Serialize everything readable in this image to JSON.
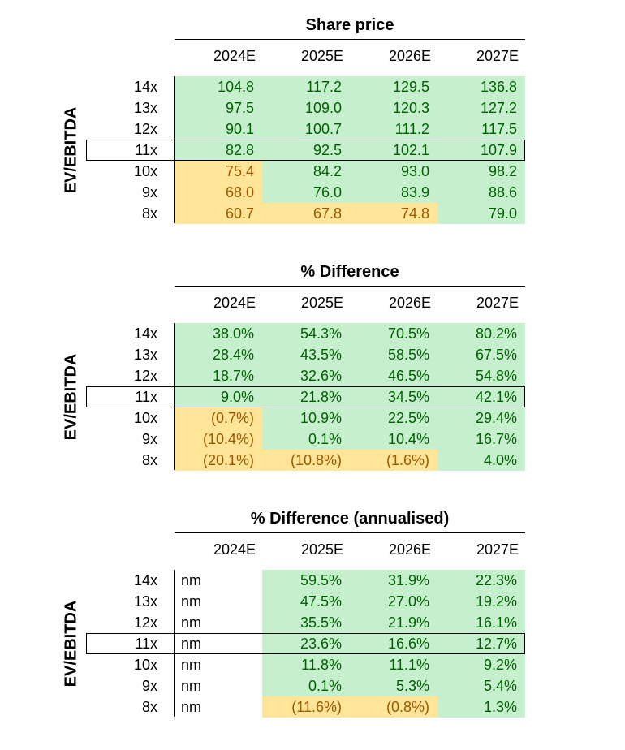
{
  "chart_data": [
    {
      "type": "table",
      "title": "Share price",
      "ylabel": "EV/EBITDA",
      "columns": [
        "2024E",
        "2025E",
        "2026E",
        "2027E"
      ],
      "rows": [
        "14x",
        "13x",
        "12x",
        "11x",
        "10x",
        "9x",
        "8x"
      ],
      "highlight_row": "11x",
      "values": [
        [
          "104.8",
          "117.2",
          "129.5",
          "136.8"
        ],
        [
          "97.5",
          "109.0",
          "120.3",
          "127.2"
        ],
        [
          "90.1",
          "100.7",
          "111.2",
          "117.5"
        ],
        [
          "82.8",
          "92.5",
          "102.1",
          "107.9"
        ],
        [
          "75.4",
          "84.2",
          "93.0",
          "98.2"
        ],
        [
          "68.0",
          "76.0",
          "83.9",
          "88.6"
        ],
        [
          "60.7",
          "67.8",
          "74.8",
          "79.0"
        ]
      ],
      "styles": [
        [
          "g",
          "g",
          "g",
          "g"
        ],
        [
          "g",
          "g",
          "g",
          "g"
        ],
        [
          "g",
          "g",
          "g",
          "g"
        ],
        [
          "g",
          "g",
          "g",
          "g"
        ],
        [
          "o",
          "g",
          "g",
          "g"
        ],
        [
          "o",
          "g",
          "g",
          "g"
        ],
        [
          "o",
          "o",
          "o",
          "g"
        ]
      ]
    },
    {
      "type": "table",
      "title": "% Difference",
      "ylabel": "EV/EBITDA",
      "columns": [
        "2024E",
        "2025E",
        "2026E",
        "2027E"
      ],
      "rows": [
        "14x",
        "13x",
        "12x",
        "11x",
        "10x",
        "9x",
        "8x"
      ],
      "highlight_row": "11x",
      "values": [
        [
          "38.0%",
          "54.3%",
          "70.5%",
          "80.2%"
        ],
        [
          "28.4%",
          "43.5%",
          "58.5%",
          "67.5%"
        ],
        [
          "18.7%",
          "32.6%",
          "46.5%",
          "54.8%"
        ],
        [
          "9.0%",
          "21.8%",
          "34.5%",
          "42.1%"
        ],
        [
          "(0.7%)",
          "10.9%",
          "22.5%",
          "29.4%"
        ],
        [
          "(10.4%)",
          "0.1%",
          "10.4%",
          "16.7%"
        ],
        [
          "(20.1%)",
          "(10.8%)",
          "(1.6%)",
          "4.0%"
        ]
      ],
      "styles": [
        [
          "g",
          "g",
          "g",
          "g"
        ],
        [
          "g",
          "g",
          "g",
          "g"
        ],
        [
          "g",
          "g",
          "g",
          "g"
        ],
        [
          "g",
          "g",
          "g",
          "g"
        ],
        [
          "o",
          "g",
          "g",
          "g"
        ],
        [
          "o",
          "g",
          "g",
          "g"
        ],
        [
          "o",
          "o",
          "o",
          "g"
        ]
      ]
    },
    {
      "type": "table",
      "title": "% Difference (annualised)",
      "ylabel": "EV/EBITDA",
      "columns": [
        "2024E",
        "2025E",
        "2026E",
        "2027E"
      ],
      "rows": [
        "14x",
        "13x",
        "12x",
        "11x",
        "10x",
        "9x",
        "8x"
      ],
      "highlight_row": "11x",
      "values": [
        [
          "nm",
          "59.5%",
          "31.9%",
          "22.3%"
        ],
        [
          "nm",
          "47.5%",
          "27.0%",
          "19.2%"
        ],
        [
          "nm",
          "35.5%",
          "21.9%",
          "16.1%"
        ],
        [
          "nm",
          "23.6%",
          "16.6%",
          "12.7%"
        ],
        [
          "nm",
          "11.8%",
          "11.1%",
          "9.2%"
        ],
        [
          "nm",
          "0.1%",
          "5.3%",
          "5.4%"
        ],
        [
          "nm",
          "(11.6%)",
          "(0.8%)",
          "1.3%"
        ]
      ],
      "styles": [
        [
          "n",
          "g",
          "g",
          "g"
        ],
        [
          "n",
          "g",
          "g",
          "g"
        ],
        [
          "n",
          "g",
          "g",
          "g"
        ],
        [
          "n",
          "g",
          "g",
          "g"
        ],
        [
          "n",
          "g",
          "g",
          "g"
        ],
        [
          "n",
          "g",
          "g",
          "g"
        ],
        [
          "n",
          "o",
          "o",
          "g"
        ]
      ]
    }
  ],
  "colors": {
    "positive_fill": "#c6efce",
    "positive_text": "#006100",
    "negative_fill": "#ffe597",
    "negative_text": "#9c5700"
  }
}
